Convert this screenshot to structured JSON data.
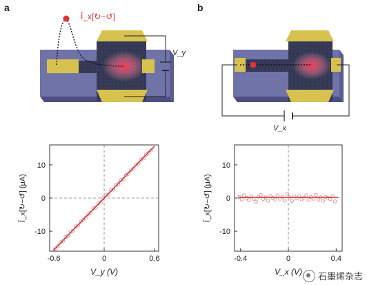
{
  "panels": {
    "a_label": "a",
    "b_label": "b"
  },
  "schematic": {
    "a_signal_label": "Î_x[↻−↺]",
    "a_voltage_label": "V_y",
    "b_voltage_label": "V_x"
  },
  "colors": {
    "substrate": "#6f73a8",
    "contact": "#d8c24f",
    "signal_red": "#e0323a",
    "fit_line": "#c5282f",
    "marker": "#e08a8e"
  },
  "watermark": {
    "text": "石墨烯杂志",
    "icon": "wechat-badge-icon"
  },
  "chart_data": [
    {
      "type": "scatter",
      "panel": "a",
      "xlabel": "V_y (V)",
      "ylabel": "Î_x[↻−↺] (μA)",
      "xlim": [
        -0.65,
        0.65
      ],
      "ylim": [
        -16,
        16
      ],
      "xticks": [
        "-0.6",
        "0",
        "0.6"
      ],
      "xtick_values": [
        -0.6,
        0,
        0.6
      ],
      "yticks": [
        "10",
        "0",
        "-10"
      ],
      "ytick_values": [
        10,
        0,
        -10
      ],
      "grid": "dashed zero lines",
      "fit": {
        "x": [
          -0.6,
          0.6
        ],
        "y": [
          -15.6,
          15.6
        ]
      },
      "x": [
        -0.58,
        -0.55,
        -0.52,
        -0.49,
        -0.46,
        -0.43,
        -0.4,
        -0.37,
        -0.34,
        -0.31,
        -0.28,
        -0.25,
        -0.22,
        -0.19,
        -0.16,
        -0.13,
        -0.1,
        -0.07,
        -0.04,
        -0.01,
        0.02,
        0.05,
        0.08,
        0.11,
        0.14,
        0.17,
        0.2,
        0.23,
        0.26,
        0.29,
        0.32,
        0.35,
        0.38,
        0.41,
        0.44,
        0.47,
        0.5,
        0.53,
        0.56
      ],
      "y": [
        -15.2,
        -14.5,
        -13.3,
        -12.9,
        -11.8,
        -11.4,
        -10.1,
        -9.8,
        -8.6,
        -8.3,
        -7.1,
        -6.6,
        -5.9,
        -4.8,
        -4.4,
        -3.1,
        -2.9,
        -1.6,
        -1.3,
        0.1,
        0.8,
        1.1,
        2.4,
        2.6,
        3.9,
        4.2,
        5.4,
        5.7,
        6.9,
        7.3,
        8.5,
        8.9,
        10.1,
        10.4,
        11.6,
        12.0,
        13.1,
        13.6,
        14.4
      ]
    },
    {
      "type": "scatter",
      "panel": "b",
      "xlabel": "V_x (V)",
      "ylabel": "Î_x[↻−↺] (μA)",
      "xlim": [
        -0.45,
        0.45
      ],
      "ylim": [
        -16,
        16
      ],
      "xticks": [
        "-0.4",
        "0",
        "0.4"
      ],
      "xtick_values": [
        -0.4,
        0,
        0.4
      ],
      "yticks": [
        "10",
        "0",
        "-10"
      ],
      "ytick_values": [
        10,
        0,
        -10
      ],
      "grid": "dashed vertical zero line",
      "fit": {
        "x": [
          -0.42,
          0.42
        ],
        "y": [
          0.2,
          0.2
        ]
      },
      "x": [
        -0.41,
        -0.39,
        -0.37,
        -0.35,
        -0.33,
        -0.31,
        -0.29,
        -0.27,
        -0.25,
        -0.23,
        -0.21,
        -0.19,
        -0.17,
        -0.15,
        -0.13,
        -0.11,
        -0.09,
        -0.07,
        -0.05,
        -0.03,
        -0.01,
        0.01,
        0.03,
        0.05,
        0.07,
        0.09,
        0.11,
        0.13,
        0.15,
        0.17,
        0.19,
        0.21,
        0.23,
        0.25,
        0.27,
        0.29,
        0.31,
        0.33,
        0.35,
        0.37,
        0.39
      ],
      "y": [
        0.3,
        -0.4,
        0.8,
        0.1,
        -0.6,
        0.5,
        -0.2,
        -1.1,
        0.4,
        0.9,
        -0.3,
        0.2,
        -0.8,
        0.6,
        0.0,
        -0.5,
        0.7,
        -0.2,
        0.4,
        -0.7,
        1.3,
        0.2,
        -0.9,
        0.5,
        -0.1,
        0.6,
        -0.4,
        0.1,
        0.8,
        -0.6,
        0.3,
        -0.2,
        0.9,
        -0.5,
        0.2,
        -0.8,
        0.4,
        0.1,
        -0.3,
        0.6,
        -1.0
      ]
    }
  ]
}
